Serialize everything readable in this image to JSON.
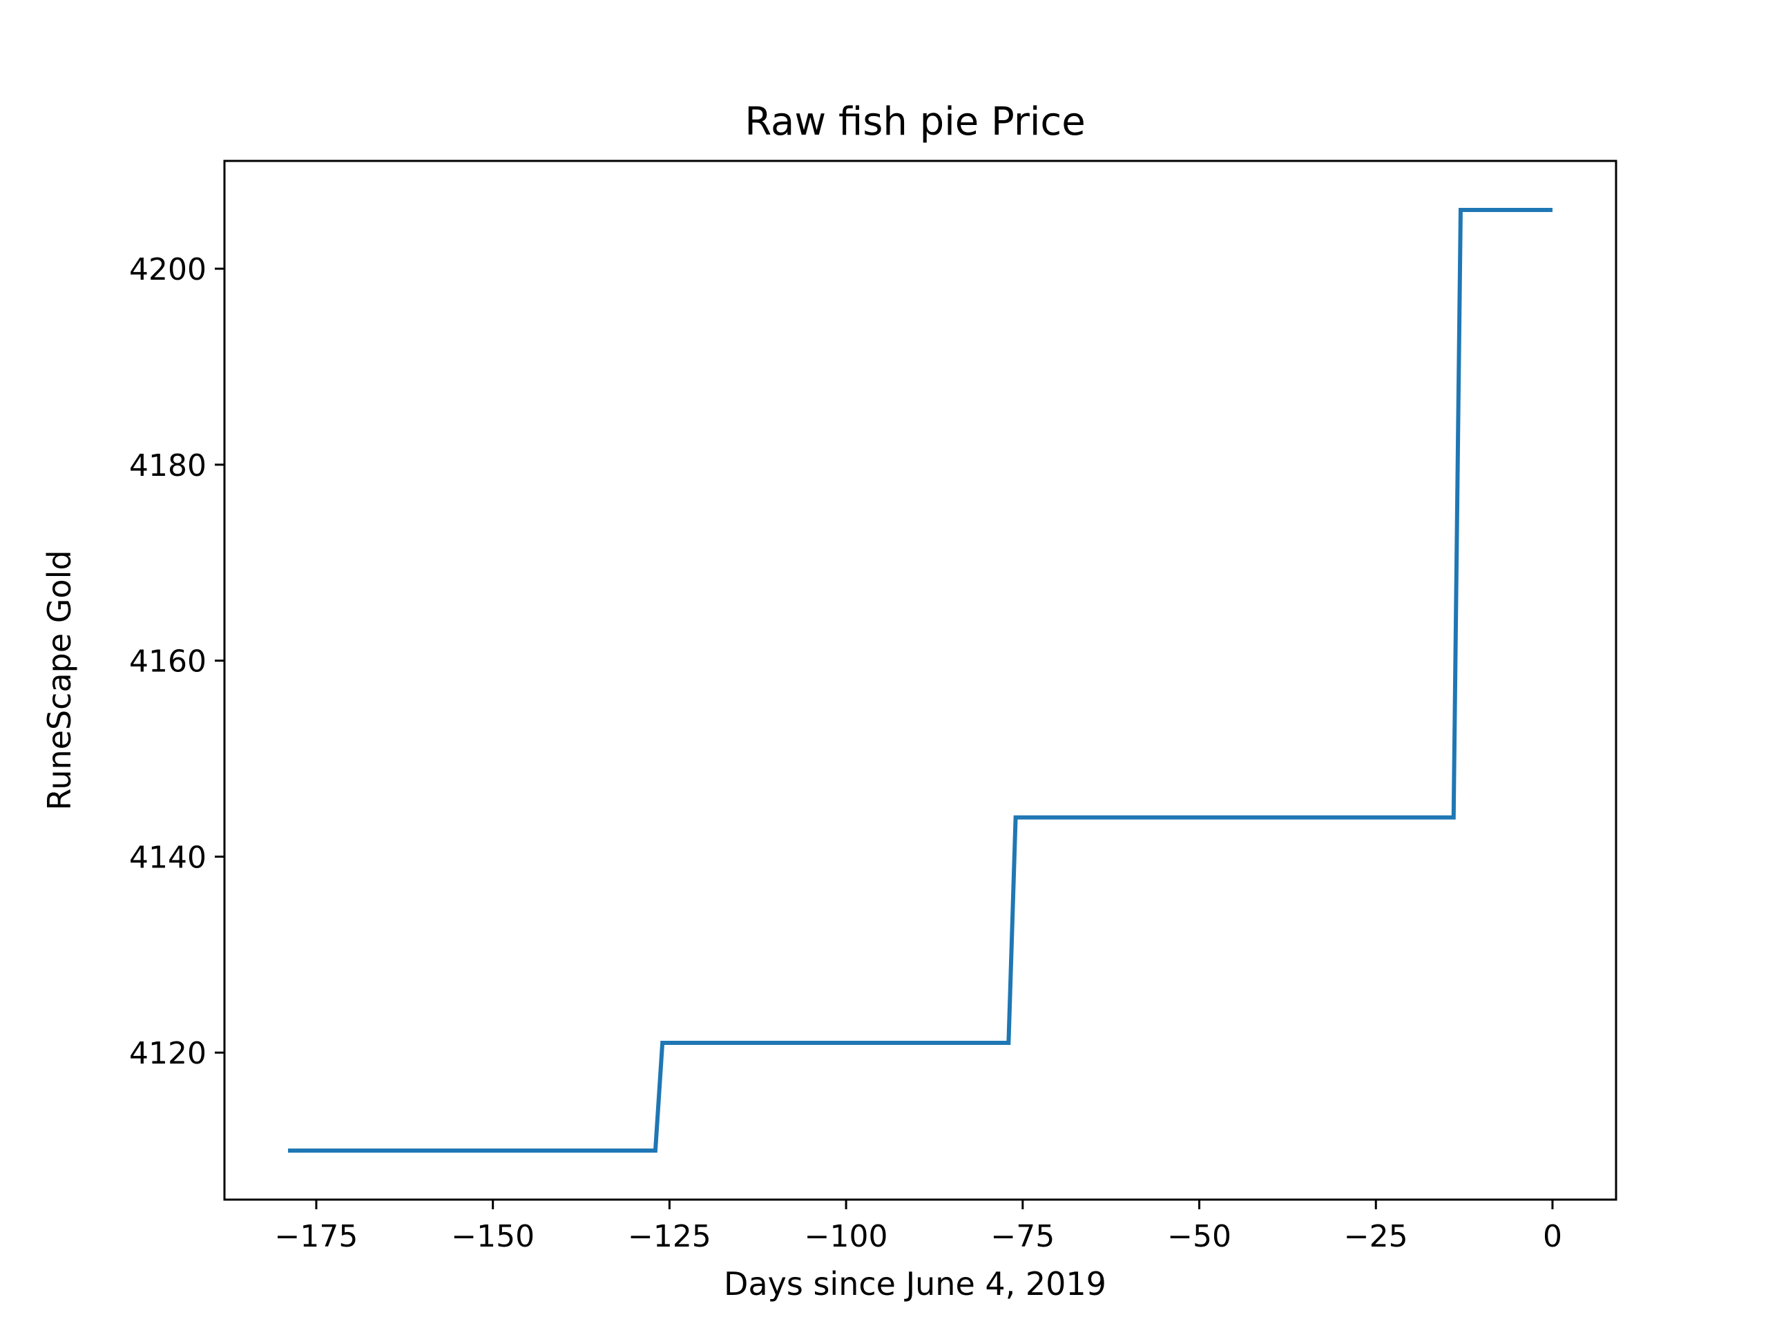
{
  "chart_data": {
    "type": "line",
    "title": "Raw fish pie Price",
    "xlabel": "Days since June 4, 2019",
    "ylabel": "RuneScape Gold",
    "xlim": [
      -188,
      9
    ],
    "ylim": [
      4105,
      4211
    ],
    "xticks": [
      -175,
      -150,
      -125,
      -100,
      -75,
      -50,
      -25,
      0
    ],
    "xtick_labels": [
      "−175",
      "−150",
      "−125",
      "−100",
      "−75",
      "−50",
      "−25",
      "0"
    ],
    "yticks": [
      4120,
      4140,
      4160,
      4180,
      4200
    ],
    "ytick_labels": [
      "4120",
      "4140",
      "4160",
      "4180",
      "4200"
    ],
    "grid": false,
    "series": [
      {
        "color": "#1f77b4",
        "x": [
          -179,
          -127,
          -126,
          -77,
          -76,
          -14,
          -13,
          0
        ],
        "y": [
          4110,
          4110,
          4121,
          4121,
          4144,
          4144,
          4206,
          4206
        ]
      }
    ]
  }
}
